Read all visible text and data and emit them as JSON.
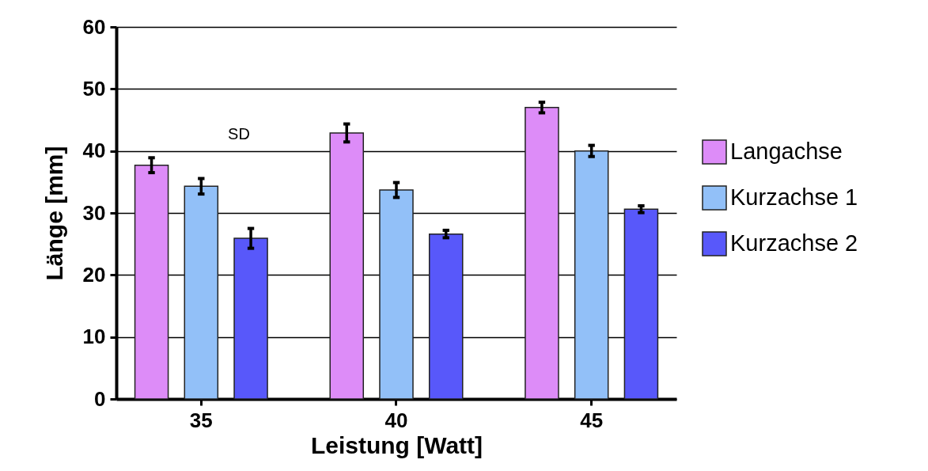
{
  "chart_data": {
    "type": "bar",
    "xlabel": "Leistung [Watt]",
    "ylabel": "Länge [mm]",
    "categories": [
      "35",
      "40",
      "45"
    ],
    "series": [
      {
        "name": "Langachse",
        "color": "#dd8cf8",
        "values": [
          37.7,
          42.9,
          47.0
        ],
        "errors": [
          1.2,
          1.45,
          0.85
        ]
      },
      {
        "name": "Kurzachse 1",
        "color": "#92c0f8",
        "values": [
          34.3,
          33.7,
          40.0
        ],
        "errors": [
          1.25,
          1.2,
          0.9
        ]
      },
      {
        "name": "Kurzachse 2",
        "color": "#5858fa",
        "values": [
          25.9,
          26.6,
          30.6
        ],
        "errors": [
          1.6,
          0.6,
          0.55
        ]
      }
    ],
    "ylim": [
      0,
      60
    ],
    "yticks": [
      0,
      10,
      20,
      30,
      40,
      50,
      60
    ],
    "grid": "y",
    "legend": "right",
    "annotations": [
      "SD"
    ]
  }
}
